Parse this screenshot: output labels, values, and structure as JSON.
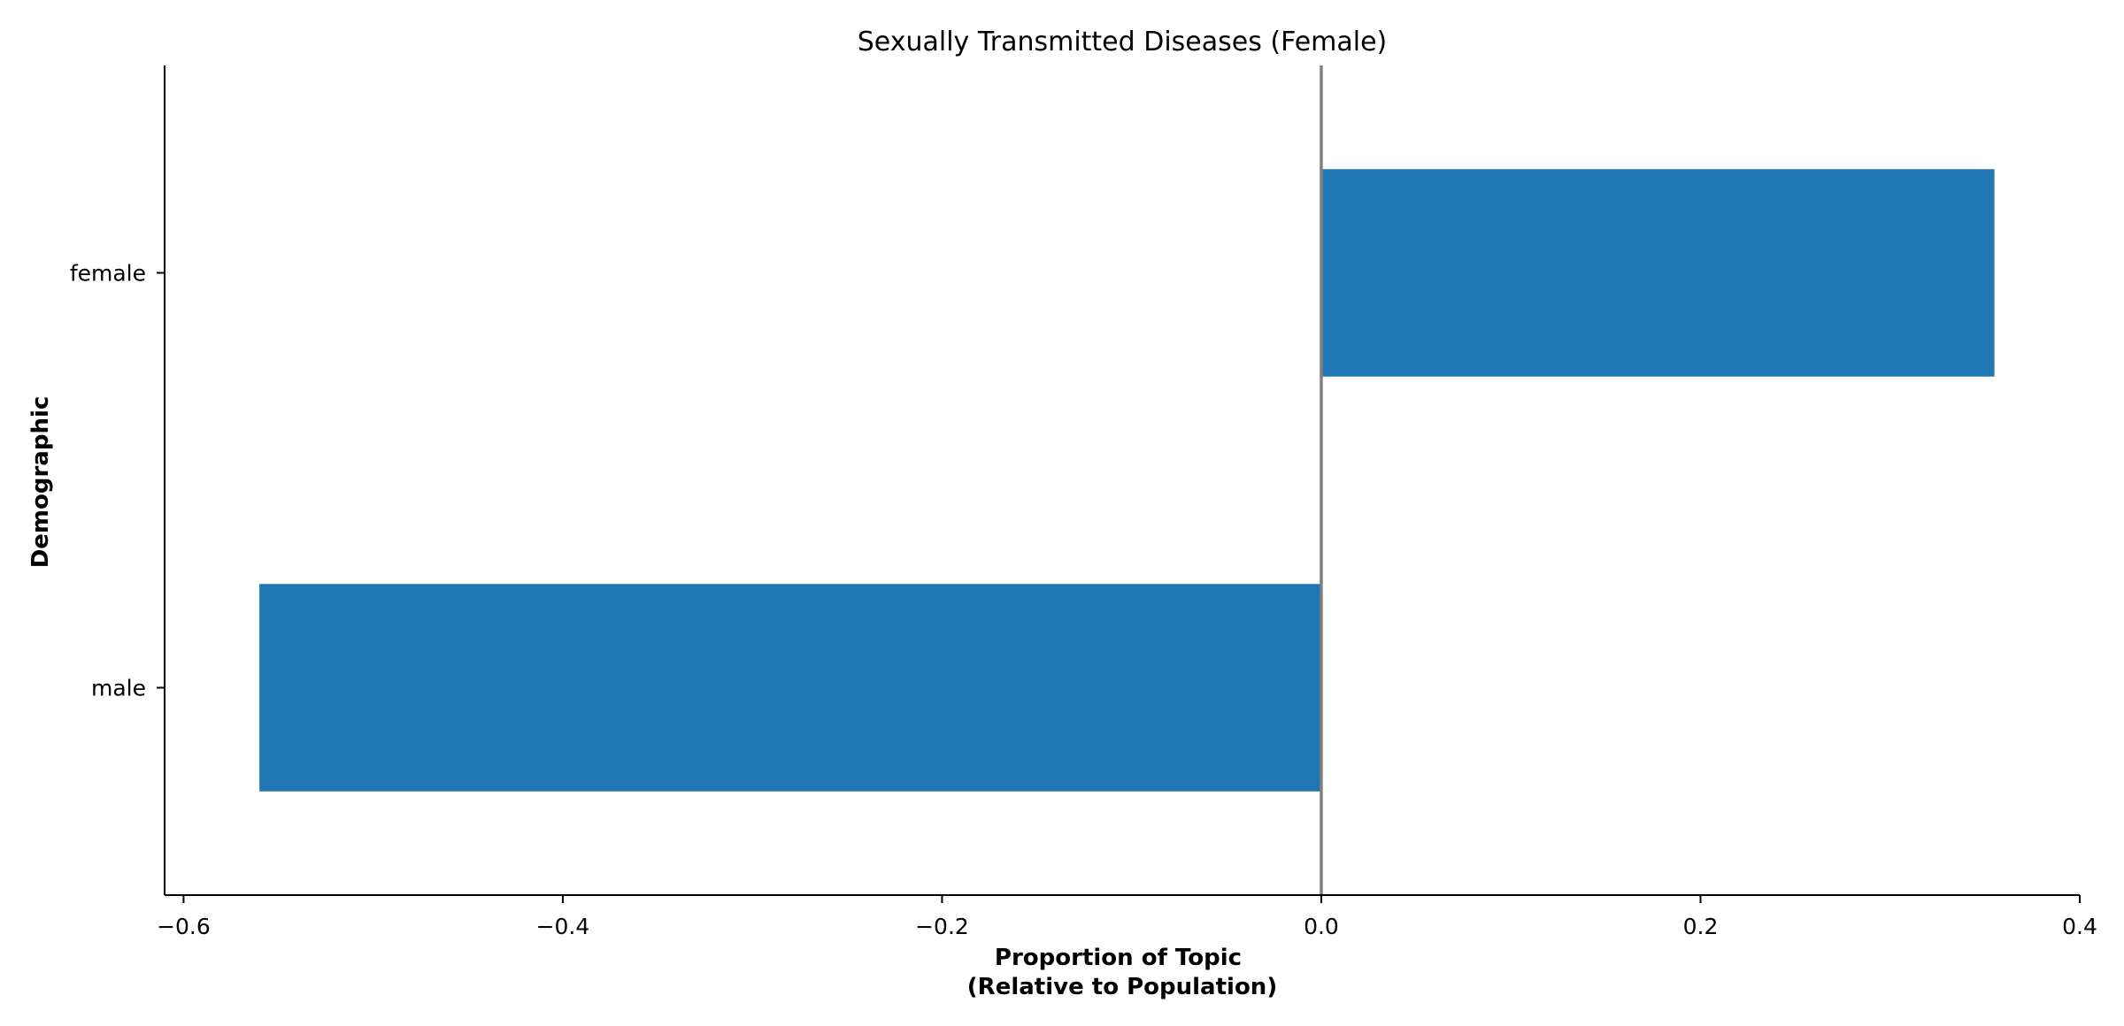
{
  "chart_data": {
    "type": "bar",
    "orientation": "horizontal",
    "title": "Sexually Transmitted Diseases (Female)",
    "xlabel_lines": [
      "Proportion of Topic",
      "(Relative to Population)"
    ],
    "ylabel": "Demographic",
    "categories": [
      "female",
      "male"
    ],
    "values": [
      0.355,
      -0.56
    ],
    "xlim": [
      -0.61,
      0.4
    ],
    "xticks": [
      -0.6,
      -0.4,
      -0.2,
      0.0,
      0.2,
      0.4
    ],
    "xtick_labels": [
      "−0.6",
      "−0.4",
      "−0.2",
      "0.0",
      "0.2",
      "0.4"
    ],
    "bar_color": "#1f77b4",
    "reference_line_color": "#808080",
    "grid": false,
    "legend": "none"
  }
}
